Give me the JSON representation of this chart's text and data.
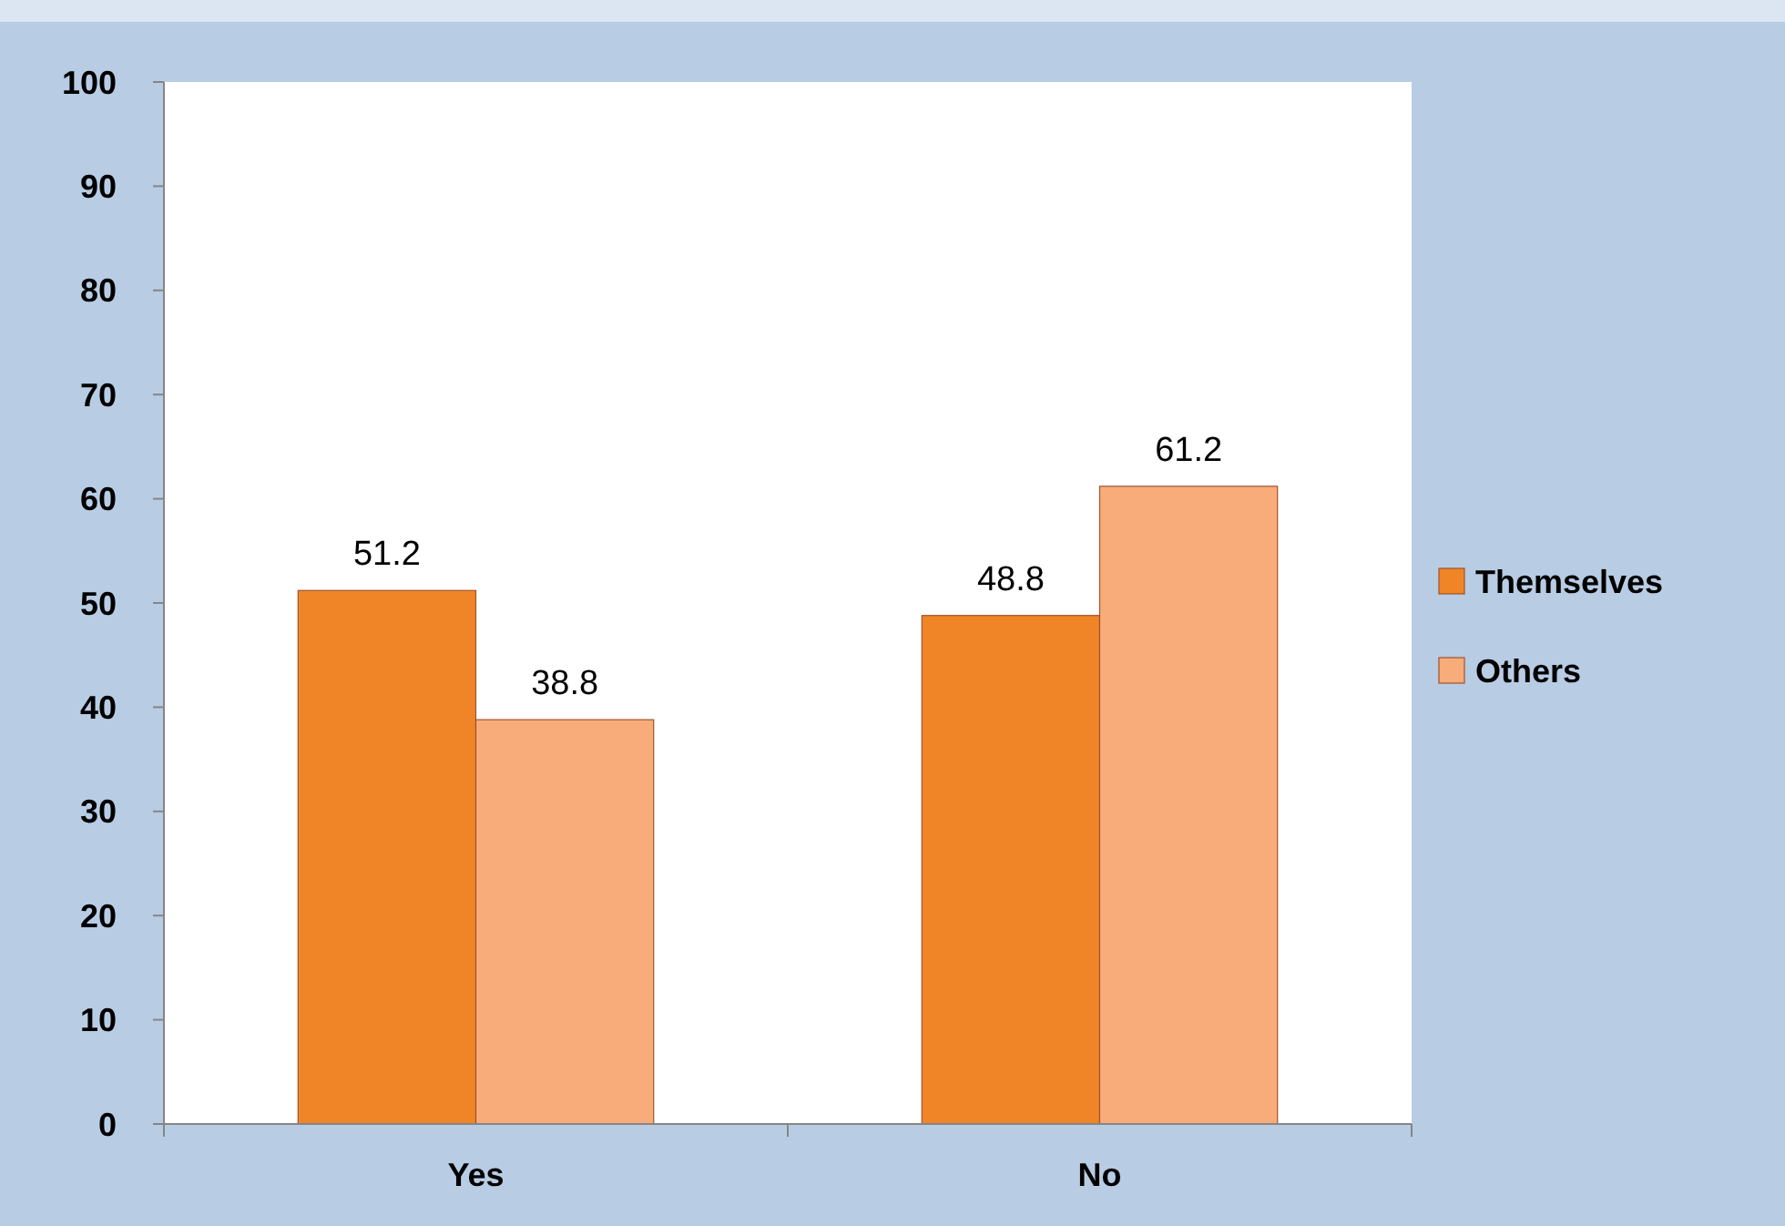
{
  "chart_data": {
    "type": "bar",
    "categories": [
      "Yes",
      "No"
    ],
    "series": [
      {
        "name": "Themselves",
        "color": "#ef8526",
        "values": [
          51.2,
          48.8
        ]
      },
      {
        "name": "Others",
        "color": "#f8ac7a",
        "values": [
          38.8,
          61.2
        ]
      }
    ],
    "ylim": [
      0,
      100
    ],
    "yticks": [
      0,
      10,
      20,
      30,
      40,
      50,
      60,
      70,
      80,
      90,
      100
    ],
    "data_labels": true,
    "legend": "right",
    "grid": false
  }
}
